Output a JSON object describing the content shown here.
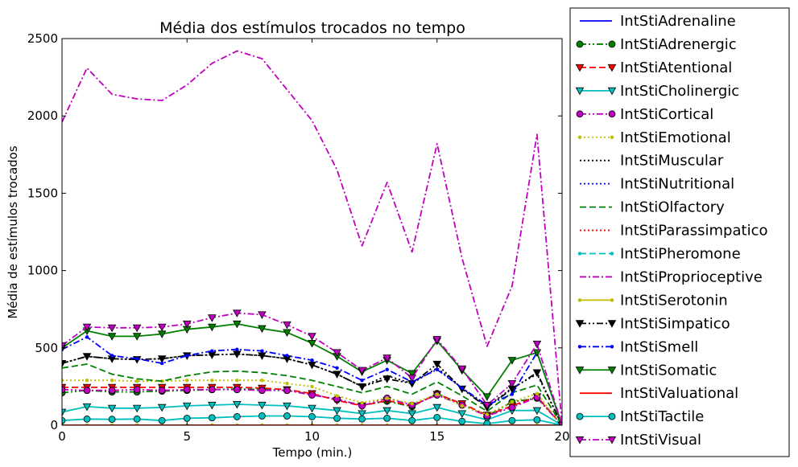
{
  "chart_data": {
    "type": "line",
    "title": "Média dos estímulos trocados no tempo",
    "xlabel": "Tempo (min.)",
    "ylabel": "Média de estímulos trocados",
    "xlim": [
      0,
      20
    ],
    "ylim": [
      0,
      2500
    ],
    "xticks": [
      0,
      5,
      10,
      15,
      20
    ],
    "yticks": [
      0,
      500,
      1000,
      1500,
      2000,
      2500
    ],
    "grid": false,
    "legend_position": "outside-right",
    "x": [
      0,
      1,
      2,
      3,
      4,
      5,
      6,
      7,
      8,
      9,
      10,
      11,
      12,
      13,
      14,
      15,
      16,
      17,
      18,
      19,
      20
    ],
    "series": [
      {
        "name": "IntStiAdrenaline",
        "color": "#0000ff",
        "linestyle": "solid",
        "marker": "none",
        "values": [
          0,
          0,
          0,
          0,
          0,
          0,
          0,
          0,
          0,
          0,
          0,
          0,
          0,
          0,
          0,
          0,
          0,
          0,
          0,
          0,
          0
        ]
      },
      {
        "name": "IntStiAdrenergic",
        "color": "#008000",
        "linestyle": "dashdotdot",
        "marker": "circle",
        "values": [
          210,
          225,
          215,
          215,
          220,
          225,
          230,
          235,
          230,
          225,
          200,
          165,
          130,
          155,
          120,
          205,
          135,
          60,
          150,
          175,
          0
        ]
      },
      {
        "name": "IntStiAtentional",
        "color": "#ff0000",
        "linestyle": "dashed",
        "marker": "triangle_down",
        "values": [
          245,
          245,
          245,
          245,
          245,
          245,
          245,
          245,
          240,
          230,
          205,
          160,
          125,
          160,
          125,
          200,
          140,
          65,
          125,
          185,
          0
        ]
      },
      {
        "name": "IntStiCholinergic",
        "color": "#00bfbf",
        "linestyle": "solid",
        "marker": "triangle_down",
        "values": [
          85,
          120,
          110,
          110,
          115,
          125,
          130,
          135,
          130,
          125,
          110,
          95,
          75,
          95,
          75,
          115,
          75,
          35,
          95,
          95,
          0
        ]
      },
      {
        "name": "IntStiCortical",
        "color": "#bf00bf",
        "linestyle": "dashdotdot",
        "marker": "circle",
        "values": [
          230,
          225,
          225,
          230,
          225,
          230,
          230,
          230,
          225,
          225,
          195,
          170,
          125,
          175,
          130,
          195,
          130,
          60,
          115,
          180,
          0
        ]
      },
      {
        "name": "IntStiEmotional",
        "color": "#bfbf00",
        "linestyle": "dotted",
        "marker": "point",
        "values": [
          290,
          290,
          290,
          285,
          285,
          290,
          290,
          290,
          290,
          270,
          250,
          190,
          145,
          175,
          140,
          200,
          125,
          70,
          150,
          205,
          0
        ]
      },
      {
        "name": "IntStiMuscular",
        "color": "#000000",
        "linestyle": "dotted",
        "marker": "none",
        "values": [
          400,
          445,
          430,
          425,
          430,
          450,
          455,
          460,
          450,
          430,
          390,
          330,
          250,
          320,
          270,
          370,
          240,
          120,
          240,
          330,
          0
        ]
      },
      {
        "name": "IntStiNutritional",
        "color": "#0000ff",
        "linestyle": "dotted",
        "marker": "none",
        "values": [
          0,
          0,
          0,
          0,
          0,
          0,
          0,
          0,
          0,
          0,
          0,
          0,
          0,
          0,
          0,
          0,
          0,
          0,
          0,
          0,
          0
        ]
      },
      {
        "name": "IntStiOlfactory",
        "color": "#008000",
        "linestyle": "dashed",
        "marker": "none",
        "values": [
          370,
          395,
          330,
          300,
          285,
          320,
          345,
          350,
          340,
          320,
          290,
          250,
          210,
          250,
          200,
          280,
          190,
          90,
          210,
          260,
          0
        ]
      },
      {
        "name": "IntStiParassimpatico",
        "color": "#ff0000",
        "linestyle": "dotted",
        "marker": "none",
        "values": [
          0,
          0,
          0,
          0,
          0,
          0,
          0,
          0,
          0,
          0,
          0,
          0,
          0,
          0,
          0,
          0,
          0,
          0,
          0,
          0,
          0
        ]
      },
      {
        "name": "IntStiPheromone",
        "color": "#00bfbf",
        "linestyle": "dashed",
        "marker": "point",
        "values": [
          0,
          0,
          0,
          0,
          0,
          0,
          0,
          0,
          0,
          0,
          0,
          0,
          0,
          0,
          0,
          0,
          0,
          0,
          0,
          0,
          0
        ]
      },
      {
        "name": "IntStiProprioceptive",
        "color": "#bf00bf",
        "linestyle": "dashdot",
        "marker": "none",
        "values": [
          1960,
          2310,
          2140,
          2110,
          2100,
          2200,
          2340,
          2420,
          2370,
          2170,
          1970,
          1650,
          1160,
          1570,
          1120,
          1820,
          1080,
          510,
          900,
          1880,
          0
        ]
      },
      {
        "name": "IntStiSerotonin",
        "color": "#bfbf00",
        "linestyle": "solid",
        "marker": "point",
        "values": [
          0,
          0,
          0,
          0,
          0,
          0,
          0,
          0,
          0,
          0,
          0,
          0,
          0,
          0,
          0,
          0,
          0,
          0,
          0,
          0,
          0
        ]
      },
      {
        "name": "IntStiSimpatico",
        "color": "#000000",
        "linestyle": "dashdotdot",
        "marker": "triangle_down",
        "values": [
          400,
          445,
          430,
          425,
          430,
          450,
          455,
          460,
          450,
          430,
          390,
          330,
          250,
          300,
          270,
          395,
          235,
          115,
          235,
          340,
          0
        ]
      },
      {
        "name": "IntStiSmell",
        "color": "#0000ff",
        "linestyle": "dashdot",
        "marker": "point",
        "values": [
          490,
          570,
          450,
          430,
          400,
          450,
          480,
          490,
          480,
          450,
          420,
          370,
          290,
          360,
          280,
          360,
          240,
          130,
          200,
          470,
          0
        ]
      },
      {
        "name": "IntStiSomatic",
        "color": "#008000",
        "linestyle": "solid",
        "marker": "triangle_down",
        "values": [
          500,
          610,
          575,
          575,
          590,
          620,
          635,
          655,
          625,
          600,
          530,
          445,
          345,
          420,
          335,
          545,
          355,
          185,
          420,
          470,
          0
        ]
      },
      {
        "name": "IntStiValuational",
        "color": "#ff0000",
        "linestyle": "solid",
        "marker": "none",
        "values": [
          0,
          0,
          0,
          0,
          0,
          0,
          0,
          0,
          0,
          0,
          0,
          0,
          0,
          0,
          0,
          0,
          0,
          0,
          0,
          0,
          0
        ]
      },
      {
        "name": "IntStiTactile",
        "color": "#00bfbf",
        "linestyle": "solid",
        "marker": "circle",
        "values": [
          30,
          40,
          38,
          40,
          30,
          45,
          48,
          55,
          60,
          60,
          55,
          45,
          40,
          45,
          30,
          50,
          25,
          10,
          30,
          35,
          0
        ]
      },
      {
        "name": "IntStiVisual",
        "color": "#bf00bf",
        "linestyle": "dashdot",
        "marker": "triangle_down",
        "values": [
          515,
          635,
          630,
          630,
          635,
          655,
          695,
          725,
          715,
          650,
          575,
          470,
          355,
          435,
          305,
          555,
          365,
          130,
          270,
          525,
          0
        ]
      }
    ]
  }
}
